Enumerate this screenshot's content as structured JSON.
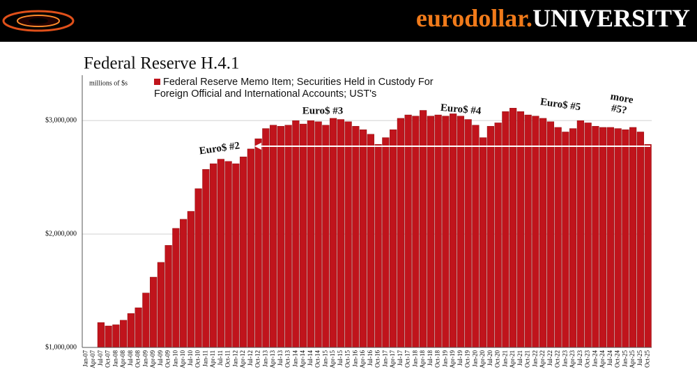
{
  "header": {
    "brand_prefix": "eurodollar.",
    "brand_name": "UNIVERSITY",
    "slide_title": "Federal Reserve H.4.1"
  },
  "chart_data": {
    "type": "bar",
    "y_label": "millions of $s",
    "series": [
      {
        "name": "Federal Reserve Memo Item; Securities Held in Custody For Foreign Official and International Accounts; UST's",
        "color": "#c0141c",
        "values": [
          null,
          null,
          1220000,
          1190000,
          1200000,
          1240000,
          1300000,
          1350000,
          1480000,
          1620000,
          1750000,
          1900000,
          2050000,
          2130000,
          2200000,
          2400000,
          2570000,
          2620000,
          2660000,
          2640000,
          2620000,
          2680000,
          2750000,
          2840000,
          2930000,
          2960000,
          2950000,
          2960000,
          3000000,
          2970000,
          3000000,
          2990000,
          2960000,
          3020000,
          3010000,
          2990000,
          2950000,
          2920000,
          2880000,
          2790000,
          2850000,
          2920000,
          3020000,
          3050000,
          3040000,
          3090000,
          3040000,
          3050000,
          3040000,
          3060000,
          3040000,
          3010000,
          2960000,
          2850000,
          2950000,
          2980000,
          3080000,
          3110000,
          3080000,
          3050000,
          3040000,
          3020000,
          2990000,
          2940000,
          2900000,
          2930000,
          3000000,
          2980000,
          2950000,
          2940000,
          2940000,
          2930000,
          2920000,
          2940000,
          2900000,
          2790000
        ]
      }
    ],
    "categories": [
      "Jan-07",
      "Apr-07",
      "Jul-07",
      "Oct-07",
      "Jan-08",
      "Apr-08",
      "Jul-08",
      "Oct-08",
      "Jan-09",
      "Apr-09",
      "Jul-09",
      "Oct-09",
      "Jan-10",
      "Apr-10",
      "Jul-10",
      "Oct-10",
      "Jan-11",
      "Apr-11",
      "Jul-11",
      "Oct-11",
      "Jan-12",
      "Apr-12",
      "Jul-12",
      "Oct-12",
      "Jan-13",
      "Apr-13",
      "Jul-13",
      "Oct-13",
      "Jan-14",
      "Apr-14",
      "Jul-14",
      "Oct-14",
      "Jan-15",
      "Apr-15",
      "Jul-15",
      "Oct-15",
      "Jan-16",
      "Apr-16",
      "Jul-16",
      "Oct-16",
      "Jan-17",
      "Apr-17",
      "Jul-17",
      "Oct-17",
      "Jan-18",
      "Apr-18",
      "Jul-18",
      "Oct-18",
      "Jan-19",
      "Apr-19",
      "Jul-19",
      "Oct-19",
      "Jan-20",
      "Apr-20",
      "Jul-20",
      "Oct-20",
      "Jan-21",
      "Apr-21",
      "Jul-21",
      "Oct-21",
      "Jan-22",
      "Apr-22",
      "Jul-22",
      "Oct-22",
      "Jan-23",
      "Apr-23",
      "Jul-23",
      "Oct-23",
      "Jan-24",
      "Apr-24",
      "Jul-24",
      "Oct-24",
      "Jan-25",
      "Apr-25",
      "Jul-25",
      "Oct-25"
    ],
    "ylim": [
      1000000,
      3400000
    ],
    "yticks": [
      {
        "value": 1000000,
        "label": "$1,000,000"
      },
      {
        "value": 2000000,
        "label": "$2,000,000"
      },
      {
        "value": 3000000,
        "label": "$3,000,000"
      }
    ],
    "grid": true,
    "annotations": [
      "Euro$ #2",
      "Euro$ #3",
      "Euro$ #4",
      "Euro$ #5",
      "more",
      "#5?"
    ]
  }
}
